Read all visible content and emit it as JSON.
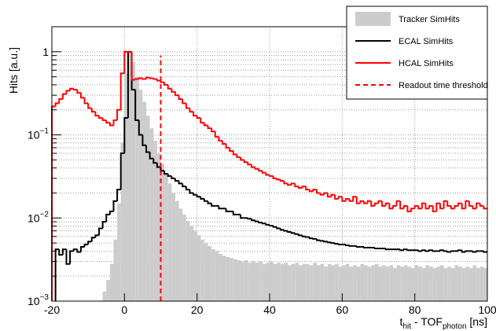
{
  "chart_data": {
    "type": "histogram",
    "y_label": "Hits [a.u.]",
    "x_label": [
      "t",
      "hit",
      " - TOF",
      "photon",
      " [ns]"
    ],
    "xlim": [
      -20,
      100
    ],
    "xticks": [
      -20,
      0,
      20,
      40,
      60,
      80,
      100
    ],
    "ylim": [
      0.001,
      2
    ],
    "ylog": true,
    "grid": true,
    "yticks": [
      {
        "value": 0.001,
        "label": "10",
        "exponent": "−3"
      },
      {
        "value": 0.01,
        "label": "10",
        "exponent": "−2"
      },
      {
        "value": 0.1,
        "label": "10",
        "exponent": "−1"
      },
      1
    ],
    "yminorticks": [
      0.002,
      0.003,
      0.004,
      0.005,
      0.006,
      0.007,
      0.008,
      0.009,
      0.02,
      0.03,
      0.04,
      0.05,
      0.06,
      0.07,
      0.08,
      0.09,
      0.2,
      0.3,
      0.4,
      0.5,
      0.6,
      0.7,
      0.8,
      0.9,
      2
    ],
    "bins": [
      -20,
      -19,
      -18,
      -17,
      -16,
      -15,
      -14,
      -13,
      -12,
      -11,
      -10,
      -9,
      -8,
      -7,
      -6,
      -5,
      -4,
      -3,
      -2,
      -1,
      0,
      1,
      2,
      3,
      4,
      5,
      6,
      7,
      8,
      9,
      10,
      11,
      12,
      13,
      14,
      15,
      16,
      17,
      18,
      19,
      20,
      21,
      22,
      23,
      24,
      25,
      26,
      27,
      28,
      29,
      30,
      31,
      32,
      33,
      34,
      35,
      36,
      37,
      38,
      39,
      40,
      41,
      42,
      43,
      44,
      45,
      46,
      47,
      48,
      49,
      50,
      51,
      52,
      53,
      54,
      55,
      56,
      57,
      58,
      59,
      60,
      61,
      62,
      63,
      64,
      65,
      66,
      67,
      68,
      69,
      70,
      71,
      72,
      73,
      74,
      75,
      76,
      77,
      78,
      79,
      80,
      81,
      82,
      83,
      84,
      85,
      86,
      87,
      88,
      89,
      90,
      91,
      92,
      93,
      94,
      95,
      96,
      97,
      98,
      99,
      100
    ],
    "series": [
      {
        "name": "Tracker SimHits",
        "color": "#cccccc",
        "style": "fill",
        "values": [
          0,
          0,
          0,
          0,
          0,
          0,
          0,
          0,
          0,
          0,
          0,
          0,
          0,
          0,
          0.0013,
          0.0018,
          0.0028,
          0.0055,
          0.015,
          0.08,
          0.55,
          1.0,
          0.75,
          0.5,
          0.35,
          0.25,
          0.17,
          0.12,
          0.085,
          0.06,
          0.045,
          0.034,
          0.026,
          0.02,
          0.016,
          0.013,
          0.011,
          0.0092,
          0.008,
          0.007,
          0.0062,
          0.0055,
          0.005,
          0.0046,
          0.0042,
          0.004,
          0.0037,
          0.0035,
          0.0034,
          0.0033,
          0.0032,
          0.0031,
          0.003,
          0.0031,
          0.0029,
          0.003,
          0.0029,
          0.003,
          0.0028,
          0.0029,
          0.003,
          0.0028,
          0.0029,
          0.0028,
          0.0029,
          0.0027,
          0.0028,
          0.0029,
          0.0027,
          0.0028,
          0.0028,
          0.0027,
          0.0029,
          0.0027,
          0.0028,
          0.0026,
          0.0028,
          0.0027,
          0.0028,
          0.0026,
          0.0027,
          0.0028,
          0.0026,
          0.0027,
          0.0026,
          0.0028,
          0.0027,
          0.0026,
          0.0027,
          0.0028,
          0.0026,
          0.0027,
          0.0026,
          0.0027,
          0.0025,
          0.0027,
          0.0026,
          0.0027,
          0.0026,
          0.0025,
          0.0027,
          0.0026,
          0.0025,
          0.0027,
          0.0026,
          0.0025,
          0.0026,
          0.0027,
          0.0025,
          0.0026,
          0.0025,
          0.0027,
          0.0026,
          0.0025,
          0.0026,
          0.0025,
          0.0027,
          0.0025,
          0.0026,
          0.0025
        ]
      },
      {
        "name": "ECAL SimHits",
        "color": "#000000",
        "style": "step",
        "values": [
          0,
          0.0042,
          0.0036,
          0.0042,
          0.0028,
          0.004,
          0.0042,
          0.0039,
          0.0045,
          0.0048,
          0.0052,
          0.0058,
          0.0062,
          0.0075,
          0.009,
          0.011,
          0.012,
          0.016,
          0.022,
          0.06,
          0.16,
          1.0,
          0.35,
          0.15,
          0.1,
          0.075,
          0.062,
          0.052,
          0.046,
          0.041,
          0.037,
          0.034,
          0.032,
          0.03,
          0.028,
          0.026,
          0.024,
          0.022,
          0.02,
          0.019,
          0.018,
          0.017,
          0.016,
          0.015,
          0.014,
          0.014,
          0.013,
          0.013,
          0.012,
          0.012,
          0.011,
          0.011,
          0.01,
          0.01,
          0.0098,
          0.0094,
          0.0091,
          0.0088,
          0.0086,
          0.0083,
          0.0081,
          0.0078,
          0.0075,
          0.0072,
          0.007,
          0.0068,
          0.0066,
          0.0064,
          0.0062,
          0.006,
          0.0059,
          0.0057,
          0.0056,
          0.0054,
          0.0053,
          0.0052,
          0.0051,
          0.005,
          0.0049,
          0.0048,
          0.0048,
          0.0047,
          0.0046,
          0.0046,
          0.0045,
          0.0045,
          0.0044,
          0.0044,
          0.0044,
          0.0043,
          0.0043,
          0.0043,
          0.0042,
          0.0042,
          0.0042,
          0.0042,
          0.0041,
          0.0042,
          0.0041,
          0.0041,
          0.0041,
          0.004,
          0.0041,
          0.004,
          0.0041,
          0.004,
          0.004,
          0.0041,
          0.004,
          0.0039,
          0.004,
          0.004,
          0.0041,
          0.0039,
          0.004,
          0.004,
          0.0039,
          0.004,
          0.004,
          0.0039
        ]
      },
      {
        "name": "HCAL SimHits",
        "color": "#ff0000",
        "style": "step",
        "values": [
          0.22,
          0.24,
          0.27,
          0.31,
          0.34,
          0.36,
          0.35,
          0.32,
          0.28,
          0.24,
          0.21,
          0.19,
          0.17,
          0.16,
          0.15,
          0.14,
          0.13,
          0.15,
          0.2,
          0.55,
          1.0,
          1.0,
          0.46,
          0.47,
          0.48,
          0.47,
          0.49,
          0.48,
          0.47,
          0.45,
          0.43,
          0.4,
          0.36,
          0.33,
          0.3,
          0.27,
          0.24,
          0.21,
          0.19,
          0.17,
          0.16,
          0.14,
          0.13,
          0.12,
          0.11,
          0.095,
          0.085,
          0.078,
          0.07,
          0.064,
          0.058,
          0.054,
          0.05,
          0.047,
          0.044,
          0.041,
          0.039,
          0.037,
          0.035,
          0.033,
          0.032,
          0.03,
          0.029,
          0.028,
          0.026,
          0.025,
          0.026,
          0.024,
          0.023,
          0.024,
          0.022,
          0.021,
          0.022,
          0.02,
          0.019,
          0.02,
          0.018,
          0.019,
          0.017,
          0.018,
          0.016,
          0.017,
          0.016,
          0.018,
          0.015,
          0.016,
          0.015,
          0.016,
          0.014,
          0.015,
          0.016,
          0.014,
          0.015,
          0.013,
          0.014,
          0.016,
          0.013,
          0.014,
          0.012,
          0.013,
          0.014,
          0.013,
          0.015,
          0.013,
          0.014,
          0.012,
          0.015,
          0.013,
          0.016,
          0.014,
          0.013,
          0.014,
          0.015,
          0.013,
          0.016,
          0.014,
          0.013,
          0.015,
          0.014,
          0.013
        ]
      }
    ],
    "threshold": {
      "name": "Readout time threshold",
      "color": "#ff0000",
      "x": 10,
      "y_end": 0.9
    },
    "legend": "top-right"
  }
}
